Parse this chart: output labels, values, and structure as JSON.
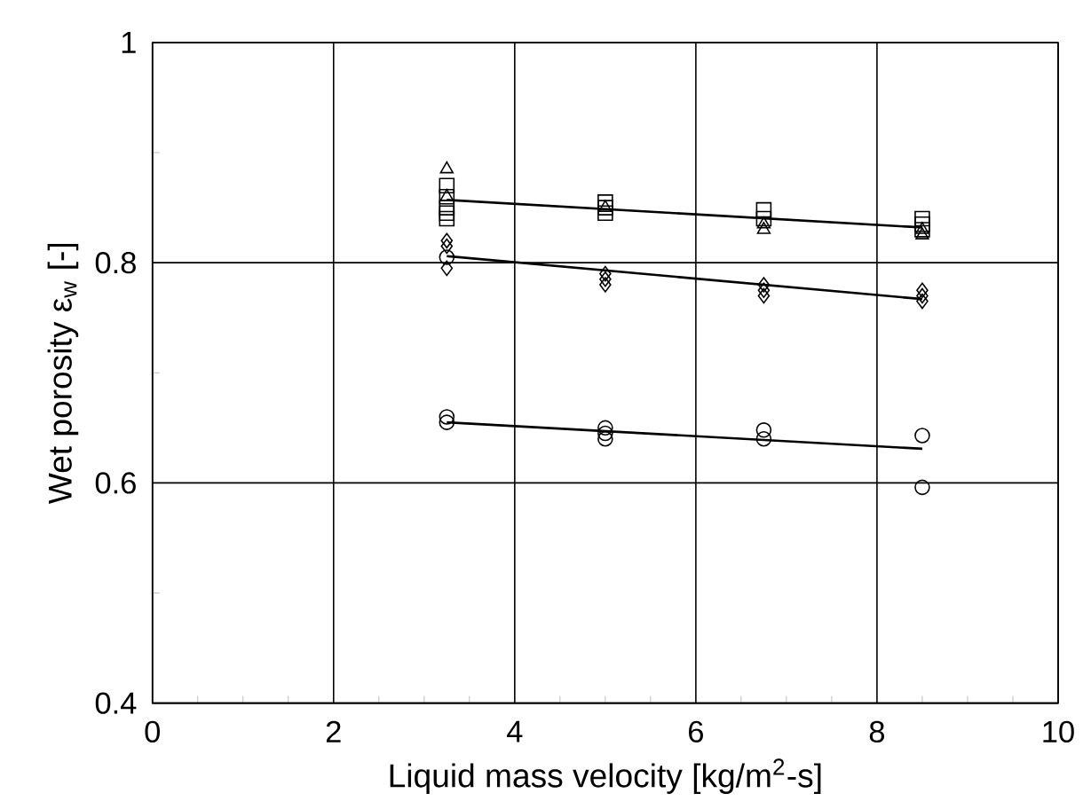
{
  "chart_data": {
    "type": "scatter",
    "xlabel": "Liquid mass velocity [kg/m$^{2}$-s]",
    "ylabel": "Wet porosity ε$_{w}$   [-]",
    "xlim": [
      0,
      10
    ],
    "ylim": [
      0.4,
      1
    ],
    "xticks": [
      0,
      2,
      4,
      6,
      8,
      10
    ],
    "yticks": [
      0.4,
      0.6,
      0.8,
      1
    ],
    "grid": true,
    "series": [
      {
        "color": "#000000",
        "marker": "triangle",
        "x": [
          3.25,
          3.25,
          5.0,
          6.75,
          6.75,
          8.5,
          8.5
        ],
        "values": [
          0.885,
          0.86,
          0.85,
          0.83,
          0.835,
          0.825,
          0.83
        ]
      },
      {
        "color": "#000000",
        "marker": "square",
        "x": [
          3.25,
          3.25,
          3.25,
          3.25,
          3.25,
          5.0,
          5.0,
          5.0,
          6.75,
          6.75,
          8.5,
          8.5,
          8.5
        ],
        "values": [
          0.87,
          0.86,
          0.85,
          0.845,
          0.84,
          0.855,
          0.85,
          0.845,
          0.848,
          0.84,
          0.84,
          0.835,
          0.83
        ]
      },
      {
        "color": "#000000",
        "marker": "diamond",
        "x": [
          3.25,
          3.25,
          3.25,
          5.0,
          5.0,
          5.0,
          6.75,
          6.75,
          6.75,
          8.5,
          8.5,
          8.5
        ],
        "values": [
          0.82,
          0.815,
          0.795,
          0.79,
          0.785,
          0.78,
          0.78,
          0.775,
          0.77,
          0.775,
          0.77,
          0.765
        ]
      },
      {
        "color": "#000000",
        "marker": "circle",
        "x": [
          3.25,
          3.25,
          3.25,
          5.0,
          5.0,
          5.0,
          6.75,
          6.75,
          8.5,
          8.5
        ],
        "values": [
          0.805,
          0.66,
          0.655,
          0.65,
          0.645,
          0.64,
          0.648,
          0.64,
          0.643,
          0.596
        ]
      },
      {
        "type": "line",
        "color": "#000000",
        "marker": "none",
        "x": [
          3.25,
          8.5
        ],
        "values": [
          0.857,
          0.832
        ]
      },
      {
        "type": "line",
        "color": "#000000",
        "marker": "none",
        "x": [
          3.25,
          8.5
        ],
        "values": [
          0.806,
          0.767
        ]
      },
      {
        "type": "line",
        "color": "#000000",
        "marker": "none",
        "x": [
          3.25,
          8.5
        ],
        "values": [
          0.655,
          0.631
        ]
      }
    ]
  }
}
